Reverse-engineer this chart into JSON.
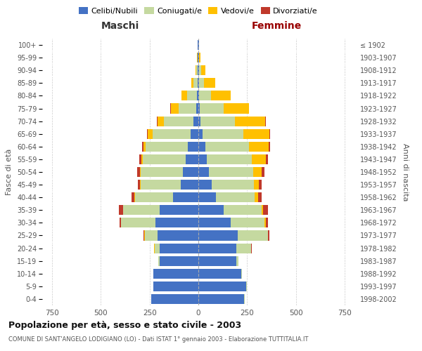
{
  "age_groups": [
    "0-4",
    "5-9",
    "10-14",
    "15-19",
    "20-24",
    "25-29",
    "30-34",
    "35-39",
    "40-44",
    "45-49",
    "50-54",
    "55-59",
    "60-64",
    "65-69",
    "70-74",
    "75-79",
    "80-84",
    "85-89",
    "90-94",
    "95-99",
    "100+"
  ],
  "birth_years": [
    "1998-2002",
    "1993-1997",
    "1988-1992",
    "1983-1987",
    "1978-1982",
    "1973-1977",
    "1968-1972",
    "1963-1967",
    "1958-1962",
    "1953-1957",
    "1948-1952",
    "1943-1947",
    "1938-1942",
    "1933-1937",
    "1928-1932",
    "1923-1927",
    "1918-1922",
    "1913-1917",
    "1908-1912",
    "1903-1907",
    "≤ 1902"
  ],
  "male": {
    "celibi": [
      240,
      230,
      230,
      200,
      200,
      210,
      220,
      200,
      130,
      90,
      80,
      65,
      55,
      40,
      25,
      12,
      7,
      5,
      3,
      2,
      2
    ],
    "coniugati": [
      2,
      2,
      2,
      5,
      25,
      65,
      175,
      185,
      195,
      205,
      215,
      220,
      215,
      195,
      150,
      90,
      50,
      20,
      8,
      3,
      1
    ],
    "vedovi": [
      0,
      0,
      0,
      1,
      1,
      1,
      1,
      1,
      2,
      3,
      5,
      8,
      12,
      25,
      35,
      40,
      30,
      12,
      5,
      1,
      0
    ],
    "divorziati": [
      0,
      0,
      0,
      1,
      2,
      4,
      8,
      20,
      15,
      12,
      12,
      10,
      5,
      3,
      2,
      2,
      1,
      0,
      0,
      0,
      0
    ]
  },
  "female": {
    "nubili": [
      235,
      245,
      220,
      195,
      195,
      200,
      165,
      130,
      90,
      70,
      55,
      45,
      35,
      20,
      12,
      8,
      5,
      5,
      5,
      2,
      2
    ],
    "coniugate": [
      2,
      2,
      3,
      10,
      75,
      155,
      175,
      195,
      200,
      215,
      225,
      230,
      225,
      210,
      175,
      120,
      60,
      25,
      10,
      3,
      1
    ],
    "vedove": [
      0,
      0,
      0,
      1,
      2,
      3,
      5,
      8,
      15,
      25,
      45,
      70,
      100,
      135,
      155,
      130,
      100,
      55,
      20,
      5,
      1
    ],
    "divorziate": [
      0,
      0,
      0,
      1,
      2,
      5,
      10,
      25,
      18,
      15,
      12,
      10,
      8,
      4,
      3,
      2,
      1,
      0,
      0,
      0,
      0
    ]
  },
  "colors": {
    "celibi": "#4472c4",
    "coniugati": "#c5d9a0",
    "vedovi": "#ffc000",
    "divorziati": "#c0392b"
  },
  "xlim": 800,
  "title": "Popolazione per età, sesso e stato civile - 2003",
  "subtitle": "COMUNE DI SANT'ANGELO LODIGIANO (LO) - Dati ISTAT 1° gennaio 2003 - Elaborazione TUTTITALIA.IT",
  "xlabel_left": "Maschi",
  "xlabel_right": "Femmine",
  "ylabel_left": "Fasce di età",
  "ylabel_right": "Anni di nascita",
  "legend_labels": [
    "Celibi/Nubili",
    "Coniugati/e",
    "Vedovi/e",
    "Divorziati/e"
  ],
  "background_color": "#ffffff",
  "grid_color": "#cccccc",
  "maschi_color": "#333333",
  "femmine_color": "#990000"
}
